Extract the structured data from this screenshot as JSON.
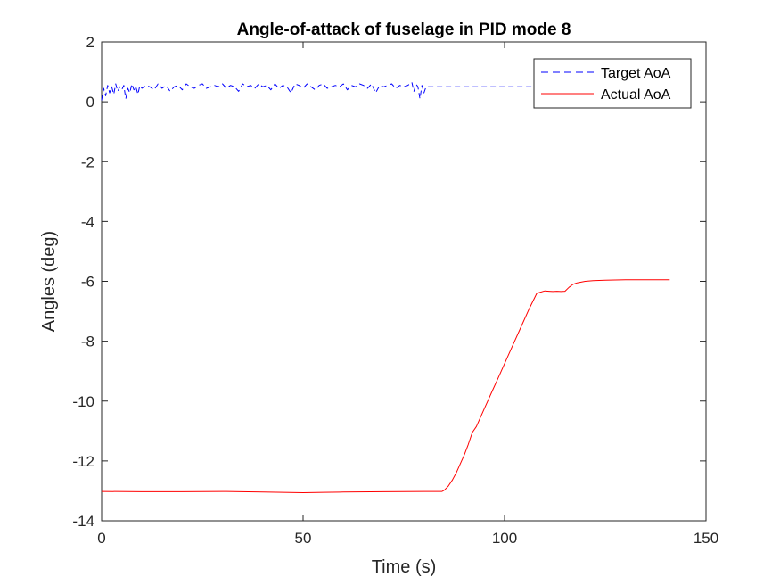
{
  "chart_data": {
    "type": "line",
    "title": "Angle-of-attack of fuselage in PID mode 8",
    "xlabel": "Time (s)",
    "ylabel": "Angles (deg)",
    "xlim": [
      0,
      150
    ],
    "ylim": [
      -14,
      2
    ],
    "xticks": [
      0,
      50,
      100,
      150
    ],
    "yticks": [
      2,
      0,
      -2,
      -4,
      -6,
      -8,
      -10,
      -12,
      -14
    ],
    "xtick_labels": [
      "0",
      "50",
      "100",
      "150"
    ],
    "ytick_labels": [
      "2",
      "0",
      "-2",
      "-4",
      "-6",
      "-8",
      "-10",
      "-12",
      "-14"
    ],
    "grid": false,
    "legend_position": "top-right",
    "series": [
      {
        "name": "Target AoA",
        "style": "dashed",
        "color": "#0000ff",
        "x": [
          0,
          0.5,
          1,
          1.5,
          2,
          2.5,
          3,
          3.5,
          4,
          4.5,
          5,
          5.5,
          6,
          6.5,
          7,
          7.5,
          8,
          8.5,
          9,
          9.5,
          10,
          11,
          12,
          13,
          14,
          15,
          16,
          17,
          18,
          19,
          20,
          21,
          22,
          23,
          24,
          25,
          26,
          27,
          28,
          29,
          30,
          31,
          32,
          33,
          34,
          35,
          36,
          37,
          38,
          39,
          40,
          41,
          42,
          43,
          44,
          45,
          46,
          47,
          48,
          49,
          50,
          51,
          52,
          53,
          54,
          55,
          56,
          57,
          58,
          59,
          60,
          61,
          62,
          63,
          64,
          65,
          66,
          67,
          68,
          69,
          70,
          71,
          72,
          73,
          74,
          75,
          76,
          77,
          77.5,
          78,
          78.5,
          79,
          79.5,
          80,
          80.5,
          81,
          85,
          90,
          95,
          100,
          105,
          110,
          115,
          120,
          125
        ],
        "y": [
          0.05,
          0.45,
          0.2,
          0.55,
          0.3,
          0.5,
          0.25,
          0.6,
          0.35,
          0.5,
          0.4,
          0.55,
          0.1,
          0.45,
          0.3,
          0.6,
          0.4,
          0.5,
          0.25,
          0.55,
          0.45,
          0.55,
          0.5,
          0.4,
          0.6,
          0.45,
          0.55,
          0.35,
          0.5,
          0.55,
          0.4,
          0.6,
          0.5,
          0.45,
          0.55,
          0.6,
          0.45,
          0.5,
          0.55,
          0.5,
          0.6,
          0.45,
          0.55,
          0.5,
          0.35,
          0.6,
          0.5,
          0.55,
          0.45,
          0.6,
          0.5,
          0.55,
          0.4,
          0.6,
          0.45,
          0.55,
          0.5,
          0.3,
          0.6,
          0.55,
          0.45,
          0.6,
          0.5,
          0.4,
          0.55,
          0.6,
          0.45,
          0.5,
          0.55,
          0.5,
          0.6,
          0.4,
          0.55,
          0.5,
          0.6,
          0.55,
          0.45,
          0.6,
          0.3,
          0.55,
          0.5,
          0.55,
          0.6,
          0.45,
          0.55,
          0.5,
          0.55,
          0.65,
          0.35,
          0.6,
          0.5,
          0.1,
          0.55,
          0.3,
          0.5,
          0.5,
          0.5,
          0.5,
          0.5,
          0.5,
          0.5,
          0.5,
          0.5,
          0.5,
          0.5
        ]
      },
      {
        "name": "Actual AoA",
        "style": "solid",
        "color": "#ff0000",
        "x": [
          0,
          10,
          20,
          30,
          40,
          45,
          50,
          55,
          60,
          70,
          80,
          84.5,
          85,
          86,
          87,
          88,
          89,
          90,
          91,
          92,
          93,
          94,
          95,
          96,
          97,
          98,
          99,
          100,
          102,
          104,
          106,
          108,
          110,
          111,
          112,
          113,
          114,
          115,
          116,
          117,
          118,
          120,
          122,
          125,
          130,
          135,
          141
        ],
        "y": [
          -13.02,
          -13.03,
          -13.03,
          -13.02,
          -13.04,
          -13.05,
          -13.06,
          -13.05,
          -13.04,
          -13.03,
          -13.02,
          -13.02,
          -12.98,
          -12.85,
          -12.65,
          -12.4,
          -12.1,
          -11.8,
          -11.45,
          -11.05,
          -10.85,
          -10.55,
          -10.25,
          -9.95,
          -9.65,
          -9.35,
          -9.05,
          -8.75,
          -8.15,
          -7.55,
          -6.95,
          -6.4,
          -6.32,
          -6.33,
          -6.34,
          -6.33,
          -6.34,
          -6.33,
          -6.2,
          -6.1,
          -6.05,
          -6.0,
          -5.98,
          -5.96,
          -5.95,
          -5.95,
          -5.95
        ]
      }
    ]
  }
}
